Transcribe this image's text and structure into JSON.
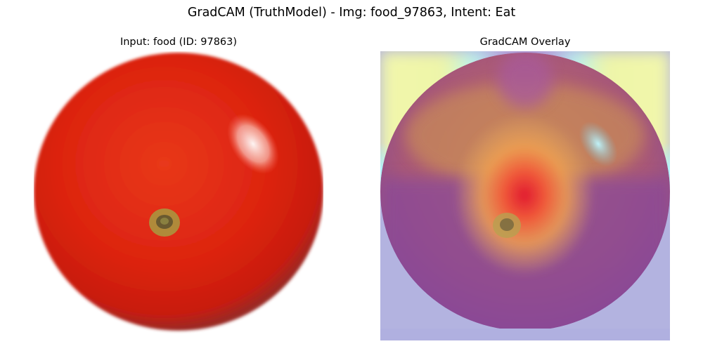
{
  "figure": {
    "suptitle": "GradCAM (TruthModel) - Img: food_97863, Intent: Eat"
  },
  "panels": [
    {
      "title": "Input: food (ID: 97863)",
      "content": "tomato photo"
    },
    {
      "title": "GradCAM Overlay",
      "content": "tomato photo with jet-colormap heatmap overlay"
    }
  ],
  "colors": {
    "tomato_red": "#e02a12",
    "tomato_dark": "#b8180c",
    "highlight": "#ffffff",
    "stem": "#a38a3a",
    "overlay_purple": "#8a4aa0",
    "overlay_yellow": "#f0f7a8",
    "overlay_cyan": "#b0f0ff",
    "overlay_orange": "#e89a4a",
    "overlay_core": "#e02030"
  }
}
